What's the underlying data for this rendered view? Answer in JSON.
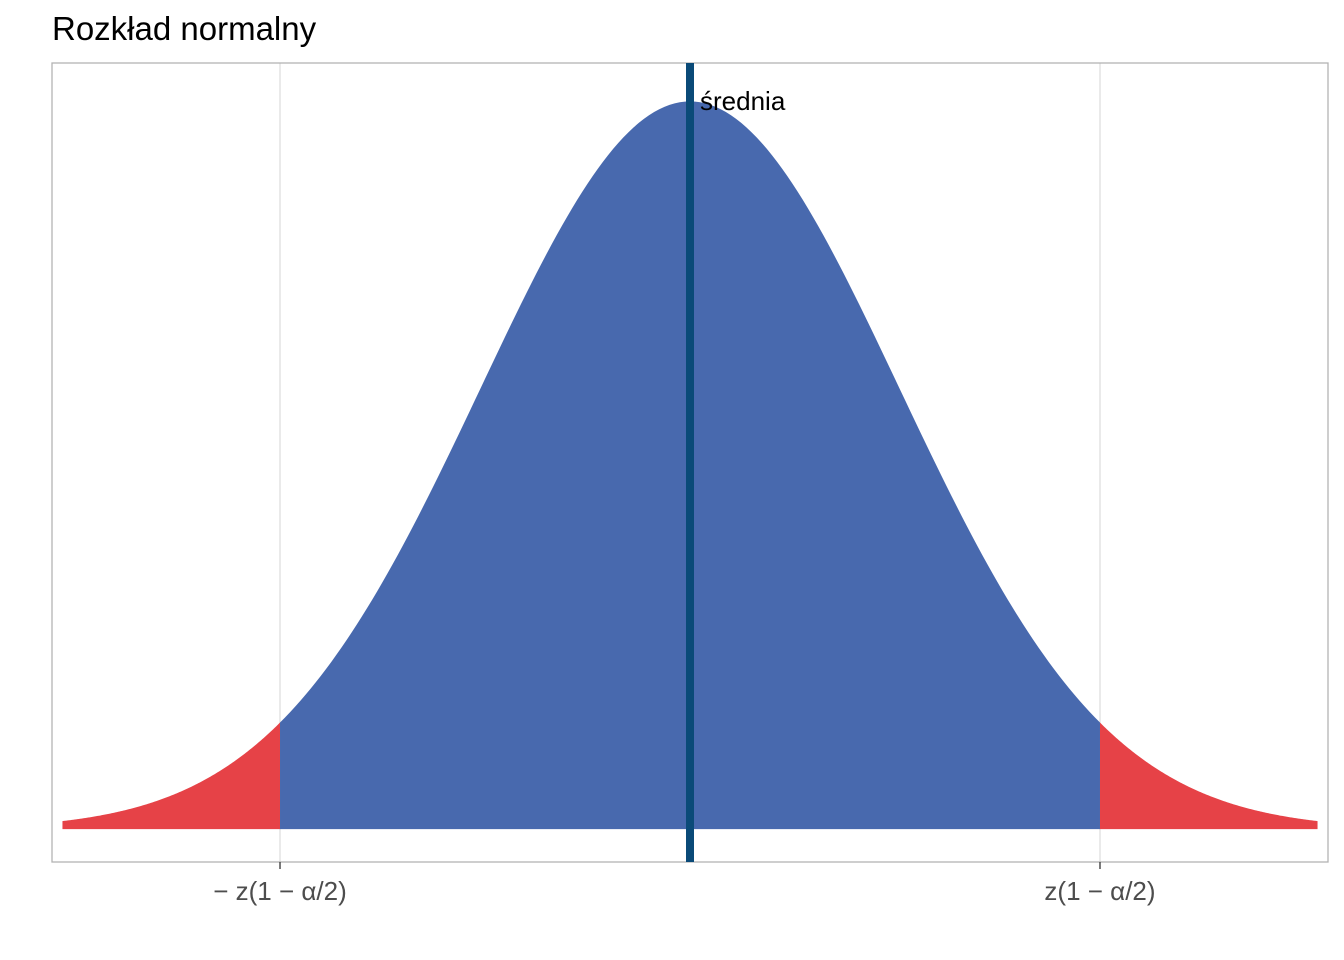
{
  "chart_data": {
    "type": "area",
    "title": "Rozkład normalny",
    "xlabel": "",
    "ylabel": "",
    "distribution": "normal",
    "mean": 0,
    "sd": 1,
    "critical_value": 1.96,
    "xlim": [
      -3.05,
      3.05
    ],
    "curve_x_range": [
      -3,
      3
    ],
    "ylim": [
      -0.018,
      0.42
    ],
    "x_ticks": [
      {
        "value": -1.96,
        "label": "− z(1 − α/2)"
      },
      {
        "value": 1.96,
        "label": "z(1 − α/2)"
      }
    ],
    "regions": [
      {
        "name": "lower-tail",
        "from": -3,
        "to": -1.96,
        "color": "#E64247"
      },
      {
        "name": "center",
        "from": -1.96,
        "to": 1.96,
        "color": "#4869AE"
      },
      {
        "name": "upper-tail",
        "from": 1.96,
        "to": 3,
        "color": "#E64247"
      }
    ],
    "vline": {
      "x": 0,
      "label": "średnia",
      "color": "#0A4A78"
    },
    "grid": "vertical at ticks",
    "frame_color": "#b3b3b3",
    "grid_color": "#dedede"
  }
}
